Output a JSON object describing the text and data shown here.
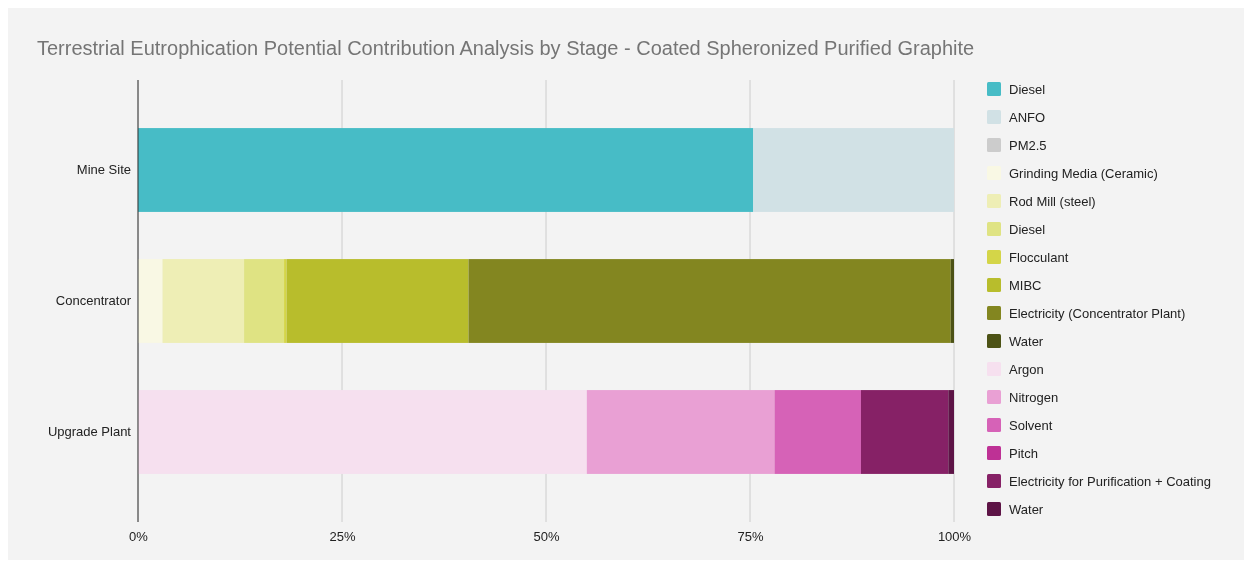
{
  "chart_data": {
    "type": "bar",
    "orientation": "horizontal",
    "stacked": true,
    "title": "Terrestrial Eutrophication Potential Contribution Analysis by Stage - Coated Spheronized Purified Graphite",
    "categories": [
      "Mine Site",
      "Concentrator",
      "Upgrade Plant"
    ],
    "series": [
      {
        "name": "Diesel",
        "color": "#47bcc6",
        "values": [
          75.4,
          null,
          null
        ]
      },
      {
        "name": "ANFO",
        "color": "#d1e1e5",
        "values": [
          24.6,
          null,
          null
        ]
      },
      {
        "name": "PM2.5",
        "color": "#cccccc",
        "values": [
          0,
          null,
          null
        ]
      },
      {
        "name": "Grinding Media (Ceramic)",
        "color": "#f9f8e4",
        "values": [
          null,
          3.0,
          null
        ]
      },
      {
        "name": "Rod Mill (steel)",
        "color": "#eeeeb5",
        "values": [
          null,
          10.0,
          null
        ]
      },
      {
        "name": "Diesel",
        "color": "#dfe383",
        "values": [
          null,
          4.9,
          null
        ]
      },
      {
        "name": "Flocculant",
        "color": "#d4d548",
        "values": [
          null,
          0.3,
          null
        ]
      },
      {
        "name": "MIBC",
        "color": "#b8bd2c",
        "values": [
          null,
          22.3,
          null
        ]
      },
      {
        "name": "Electricity (Concentrator Plant)",
        "color": "#838620",
        "values": [
          null,
          59.1,
          null
        ]
      },
      {
        "name": "Water",
        "color": "#4c5215",
        "values": [
          null,
          0.4,
          null
        ]
      },
      {
        "name": "Argon",
        "color": "#f6e0ef",
        "values": [
          null,
          null,
          55.0
        ]
      },
      {
        "name": "Nitrogen",
        "color": "#e9a0d4",
        "values": [
          null,
          null,
          23.0
        ]
      },
      {
        "name": "Solvent",
        "color": "#d662b7",
        "values": [
          null,
          null,
          10.6
        ]
      },
      {
        "name": "Pitch",
        "color": "#be3195",
        "values": [
          null,
          null,
          0
        ]
      },
      {
        "name": "Electricity for Purification + Coating",
        "color": "#862166",
        "values": [
          null,
          null,
          10.7
        ]
      },
      {
        "name": "Water",
        "color": "#5d1446",
        "values": [
          null,
          null,
          0.7
        ]
      }
    ],
    "xlim": [
      0,
      100
    ],
    "xticks": [
      {
        "value": 0,
        "label": "0%"
      },
      {
        "value": 25,
        "label": "25%"
      },
      {
        "value": 50,
        "label": "50%"
      },
      {
        "value": 75,
        "label": "75%"
      },
      {
        "value": 100,
        "label": "100%"
      }
    ],
    "grid": "x",
    "legend": "right"
  }
}
